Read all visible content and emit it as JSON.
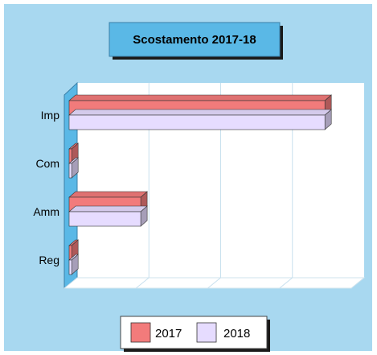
{
  "chart_data": {
    "type": "bar",
    "orientation": "horizontal",
    "style": "3d",
    "title": "Scostamento 2017-18",
    "categories": [
      "Imp",
      "Com",
      "Amm",
      "Reg"
    ],
    "series": [
      {
        "name": "2017",
        "values": [
          100,
          1,
          28,
          1
        ],
        "color": "#f27b7b"
      },
      {
        "name": "2018",
        "values": [
          100,
          1,
          28,
          1
        ],
        "color": "#e6dcff"
      }
    ],
    "xlim": [
      0,
      110
    ],
    "grid": true,
    "legend_position": "bottom-center",
    "background_color": "#a8d8f0",
    "title_box_color": "#5ab8e6"
  }
}
